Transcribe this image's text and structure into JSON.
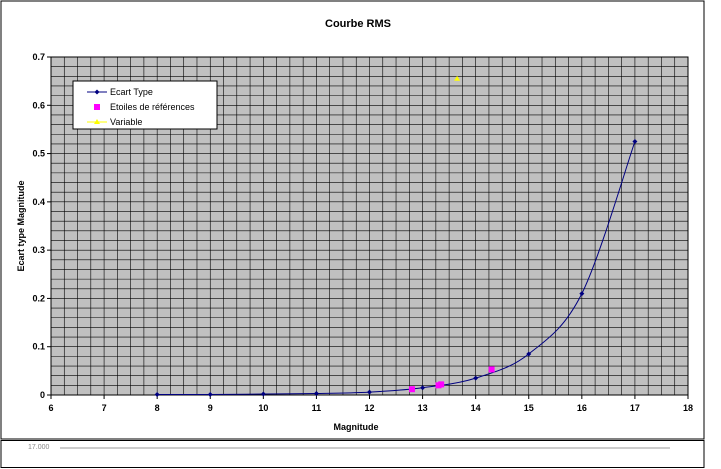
{
  "chart_data": {
    "type": "line",
    "title": "Courbe RMS",
    "xlabel": "Magnitude",
    "ylabel": "Ecart type Magnitude",
    "xlim": [
      6,
      18
    ],
    "ylim": [
      0,
      0.7
    ],
    "x_ticks": [
      "6",
      "7",
      "8",
      "9",
      "10",
      "11",
      "12",
      "13",
      "14",
      "15",
      "16",
      "17",
      "18"
    ],
    "y_ticks": [
      "0",
      "0.1",
      "0.2",
      "0.3",
      "0.4",
      "0.5",
      "0.6",
      "0.7"
    ],
    "grid": true,
    "legend_position": "top-left",
    "series": [
      {
        "name": "Ecart Type",
        "kind": "line",
        "color": "#000080",
        "x": [
          8,
          9,
          10,
          11,
          12,
          13,
          14,
          15,
          16,
          17
        ],
        "y": [
          0.001,
          0.001,
          0.002,
          0.003,
          0.006,
          0.015,
          0.035,
          0.085,
          0.21,
          0.525
        ]
      },
      {
        "name": "Etoiles de références",
        "kind": "scatter",
        "color": "#ff00ff",
        "x": [
          12.8,
          13.3,
          13.35,
          14.3
        ],
        "y": [
          0.012,
          0.02,
          0.022,
          0.053
        ]
      },
      {
        "name": "Variable",
        "kind": "scatter",
        "color": "#ffff00",
        "x": [
          13.65
        ],
        "y": [
          0.655
        ]
      }
    ]
  },
  "bottom": {
    "text": "17.000"
  }
}
